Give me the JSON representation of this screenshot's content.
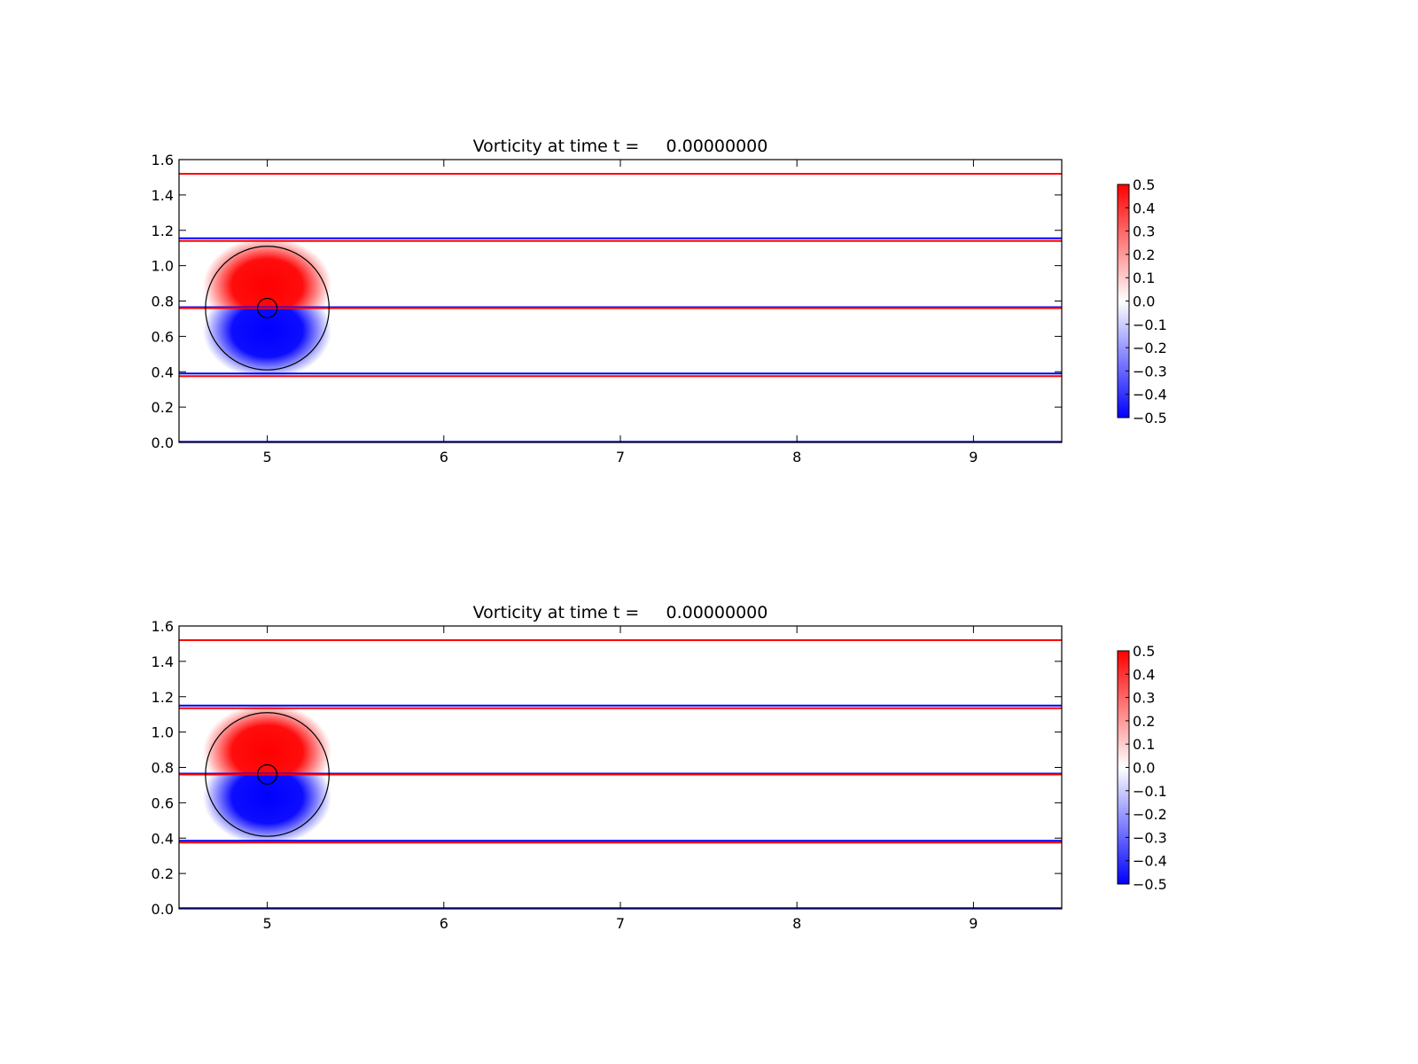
{
  "colors": {
    "positive": "#ff0000",
    "negative": "#0000ff",
    "zero": "#ffffff",
    "outline": "#000000"
  },
  "chart_data": [
    {
      "type": "heatmap",
      "title": "Vorticity at time t =     0.00000000",
      "xlabel": "",
      "ylabel": "",
      "xlim": [
        4.5,
        9.5
      ],
      "ylim": [
        0.0,
        1.6
      ],
      "x_ticks": [
        "5",
        "6",
        "7",
        "8",
        "9"
      ],
      "y_ticks": [
        "0.0",
        "0.2",
        "0.4",
        "0.6",
        "0.8",
        "1.0",
        "1.2",
        "1.4",
        "1.6"
      ],
      "colorbar": {
        "range": [
          -0.5,
          0.5
        ],
        "ticks": [
          "0.5",
          "0.4",
          "0.3",
          "0.2",
          "0.1",
          "0.0",
          "−0.1",
          "−0.2",
          "−0.3",
          "−0.4",
          "−0.5"
        ]
      },
      "vortex": {
        "center_x": 5.0,
        "center_y": 0.76,
        "outer_radius": 0.35,
        "inner_radius": 0.055,
        "max_vorticity": 0.5
      },
      "horizontal_lines": [
        {
          "y": 1.52,
          "color": "#ff0000"
        },
        {
          "y": 1.155,
          "color": "#0000ff"
        },
        {
          "y": 1.14,
          "color": "#ff0000"
        },
        {
          "y": 0.765,
          "color": "#0000ff"
        },
        {
          "y": 0.76,
          "color": "#ff0000"
        },
        {
          "y": 0.39,
          "color": "#0000ff"
        },
        {
          "y": 0.375,
          "color": "#ff0000"
        },
        {
          "y": 0.004,
          "color": "#0000ff"
        }
      ]
    },
    {
      "type": "heatmap",
      "title": "Vorticity at time t =     0.00000000",
      "xlabel": "",
      "ylabel": "",
      "xlim": [
        4.5,
        9.5
      ],
      "ylim": [
        0.0,
        1.6
      ],
      "x_ticks": [
        "5",
        "6",
        "7",
        "8",
        "9"
      ],
      "y_ticks": [
        "0.0",
        "0.2",
        "0.4",
        "0.6",
        "0.8",
        "1.0",
        "1.2",
        "1.4",
        "1.6"
      ],
      "colorbar": {
        "range": [
          -0.5,
          0.5
        ],
        "ticks": [
          "0.5",
          "0.4",
          "0.3",
          "0.2",
          "0.1",
          "0.0",
          "−0.1",
          "−0.2",
          "−0.3",
          "−0.4",
          "−0.5"
        ]
      },
      "vortex": {
        "center_x": 5.0,
        "center_y": 0.76,
        "outer_radius": 0.35,
        "inner_radius": 0.055,
        "max_vorticity": 0.5
      },
      "horizontal_lines": [
        {
          "y": 1.52,
          "color": "#ff0000"
        },
        {
          "y": 1.15,
          "color": "#0000ff"
        },
        {
          "y": 1.135,
          "color": "#ff0000"
        },
        {
          "y": 0.765,
          "color": "#0000ff"
        },
        {
          "y": 0.76,
          "color": "#ff0000"
        },
        {
          "y": 0.385,
          "color": "#0000ff"
        },
        {
          "y": 0.375,
          "color": "#ff0000"
        },
        {
          "y": 0.004,
          "color": "#0000ff"
        }
      ]
    }
  ]
}
